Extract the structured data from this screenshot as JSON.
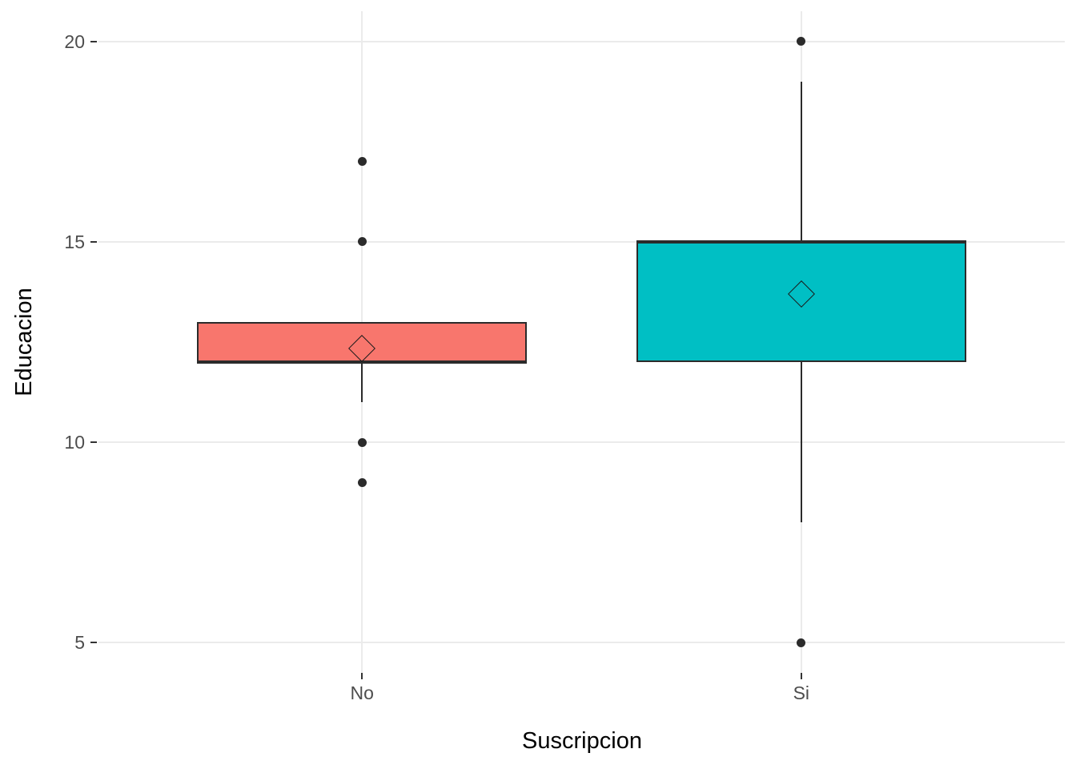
{
  "figure": {
    "background": "#FFFFFF"
  },
  "chart_data": {
    "type": "boxplot",
    "title": "",
    "xlabel": "Suscripcion",
    "ylabel": "Educacion",
    "categories": [
      "No",
      "Si"
    ],
    "y_ticks": [
      5,
      10,
      15,
      20
    ],
    "ylim": [
      4.25,
      20.75
    ],
    "grid": {
      "major": true,
      "minor": false,
      "vertical_at_categories": true
    },
    "legend": "none",
    "series": [
      {
        "category": "No",
        "fill": "#F8766D",
        "q1": 12,
        "median": 12,
        "q3": 13,
        "whisker_low": 11,
        "whisker_high": 13,
        "mean": 12.35,
        "outliers": [
          17,
          15,
          10,
          9
        ]
      },
      {
        "category": "Si",
        "fill": "#00BFC4",
        "q1": 12,
        "median": 15,
        "q3": 15,
        "whisker_low": 8,
        "whisker_high": 19,
        "mean": 13.7,
        "outliers": [
          20,
          5
        ]
      }
    ],
    "style": {
      "panel_bg": "#FFFFFF",
      "grid_color": "#EBEBEB",
      "stroke": "#2B2B2B",
      "mean_outline": "#1A1A1A",
      "tick_mark_color": "#333333",
      "tick_label_color": "#4D4D4D",
      "axis_title_color": "#000000"
    }
  }
}
